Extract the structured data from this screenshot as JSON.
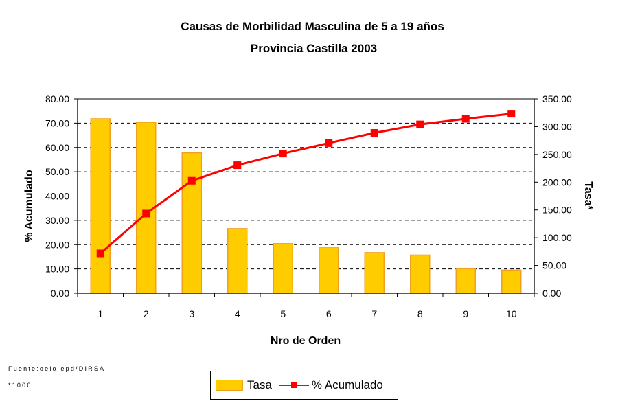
{
  "chart_data": {
    "type": "bar",
    "title": "Causas de Morbilidad Masculina de 5 a 19 años",
    "subtitle": "Provincia Castilla 2003",
    "xlabel": "Nro de Orden",
    "ylabel_left": "% Acumulado",
    "ylabel_right": "Tasa*",
    "categories": [
      "1",
      "2",
      "3",
      "4",
      "5",
      "6",
      "7",
      "8",
      "9",
      "10"
    ],
    "ylim_left": [
      0,
      80
    ],
    "ylim_right": [
      0,
      350
    ],
    "yticks_left": [
      "0.00",
      "10.00",
      "20.00",
      "30.00",
      "40.00",
      "50.00",
      "60.00",
      "70.00",
      "80.00"
    ],
    "yticks_right": [
      "0.00",
      "50.00",
      "100.00",
      "150.00",
      "200.00",
      "250.00",
      "300.00",
      "350.00"
    ],
    "grid": true,
    "legend_position": "bottom-center",
    "series": [
      {
        "name": "Tasa",
        "type": "bar",
        "axis": "left-scale",
        "color": "#FFCC00",
        "edge_color": "#F0A020",
        "values": [
          71.8,
          70.4,
          57.8,
          26.6,
          20.4,
          19.0,
          16.7,
          15.7,
          10.1,
          9.5
        ]
      },
      {
        "name": "% Acumulado",
        "type": "line",
        "axis": "left-scale",
        "color": "#FF0000",
        "marker": "square",
        "values": [
          16.4,
          32.8,
          46.3,
          52.7,
          57.5,
          61.8,
          66.0,
          69.5,
          71.8,
          73.9
        ]
      }
    ]
  },
  "footnotes": {
    "source": "Fuente:oeio epd/DIRSA",
    "note": "*1000"
  },
  "legend": {
    "items": [
      {
        "label": "Tasa"
      },
      {
        "label": "% Acumulado"
      }
    ]
  }
}
